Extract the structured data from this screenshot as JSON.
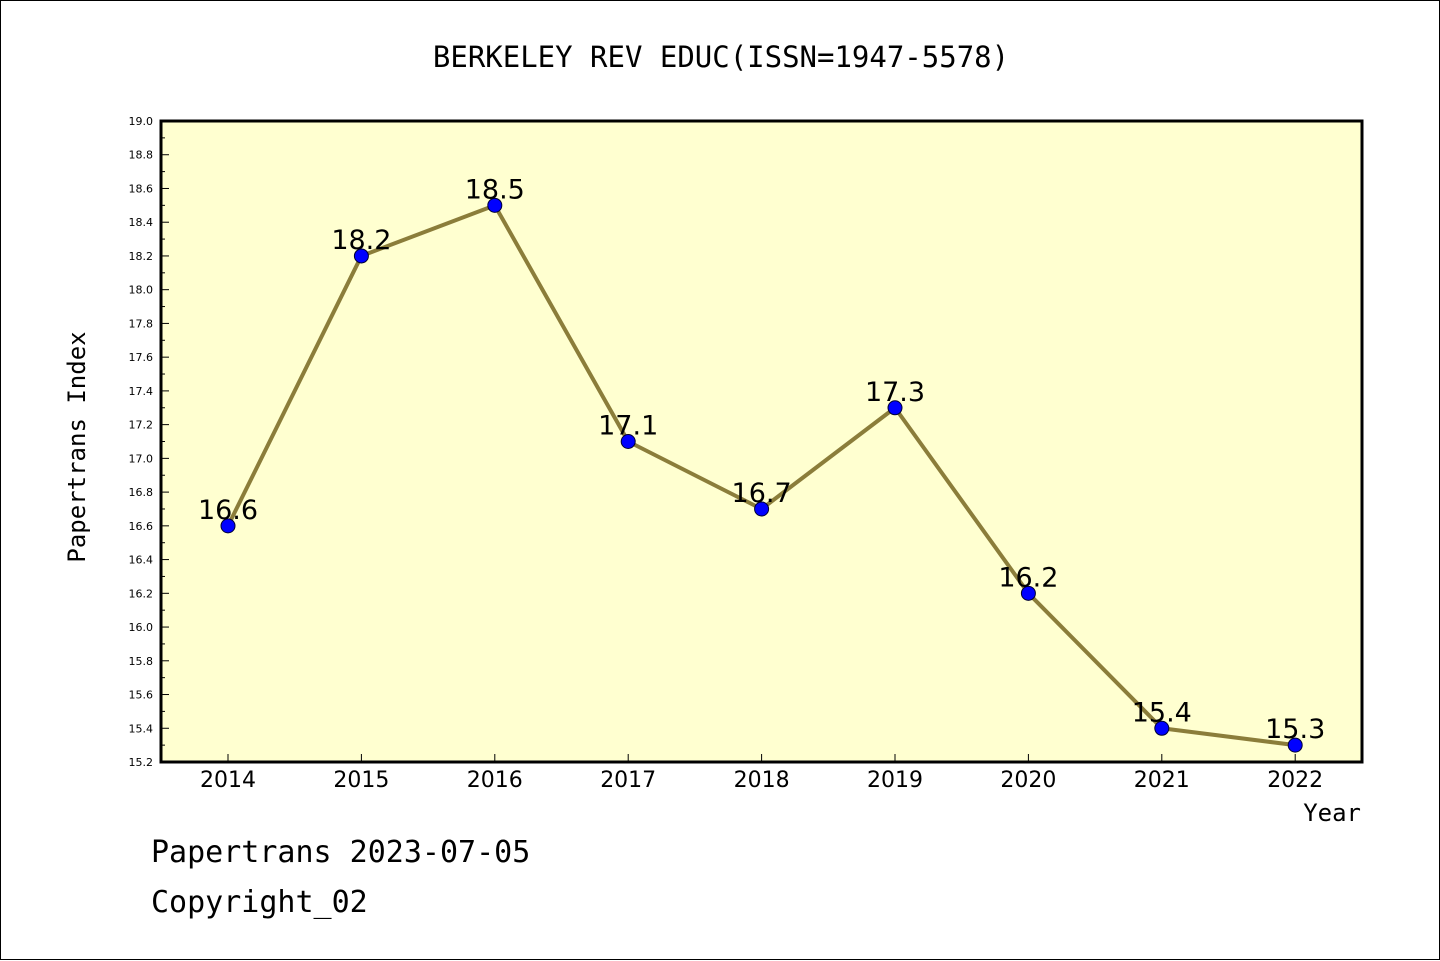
{
  "chart_data": {
    "type": "line",
    "title": "BERKELEY REV EDUC(ISSN=1947-5578)",
    "xlabel": "Year",
    "ylabel": "Papertrans Index",
    "categories": [
      "2014",
      "2015",
      "2016",
      "2017",
      "2018",
      "2019",
      "2020",
      "2021",
      "2022"
    ],
    "series": [
      {
        "values": [
          16.6,
          18.2,
          18.5,
          17.1,
          16.7,
          17.3,
          16.2,
          15.4,
          15.3
        ],
        "data_labels": [
          "16.6",
          "18.2",
          "18.5",
          "17.1",
          "16.7",
          "17.3",
          "16.2",
          "15.4",
          "15.3"
        ]
      }
    ],
    "ylim": [
      15.2,
      19.0
    ],
    "y_ticks": [
      "15.2",
      "15.4",
      "15.6",
      "15.8",
      "16.0",
      "16.2",
      "16.4",
      "16.6",
      "16.8",
      "17.0",
      "17.2",
      "17.4",
      "17.6",
      "17.8",
      "18.0",
      "18.2",
      "18.4",
      "18.6",
      "18.8",
      "19.0"
    ],
    "grid": false,
    "colors": {
      "plot_background": "#ffffd0",
      "line": "#8b7d3a",
      "marker": "#0000ff"
    }
  },
  "footer": {
    "line1": "Papertrans 2023-07-05",
    "line2": "Copyright_02"
  }
}
